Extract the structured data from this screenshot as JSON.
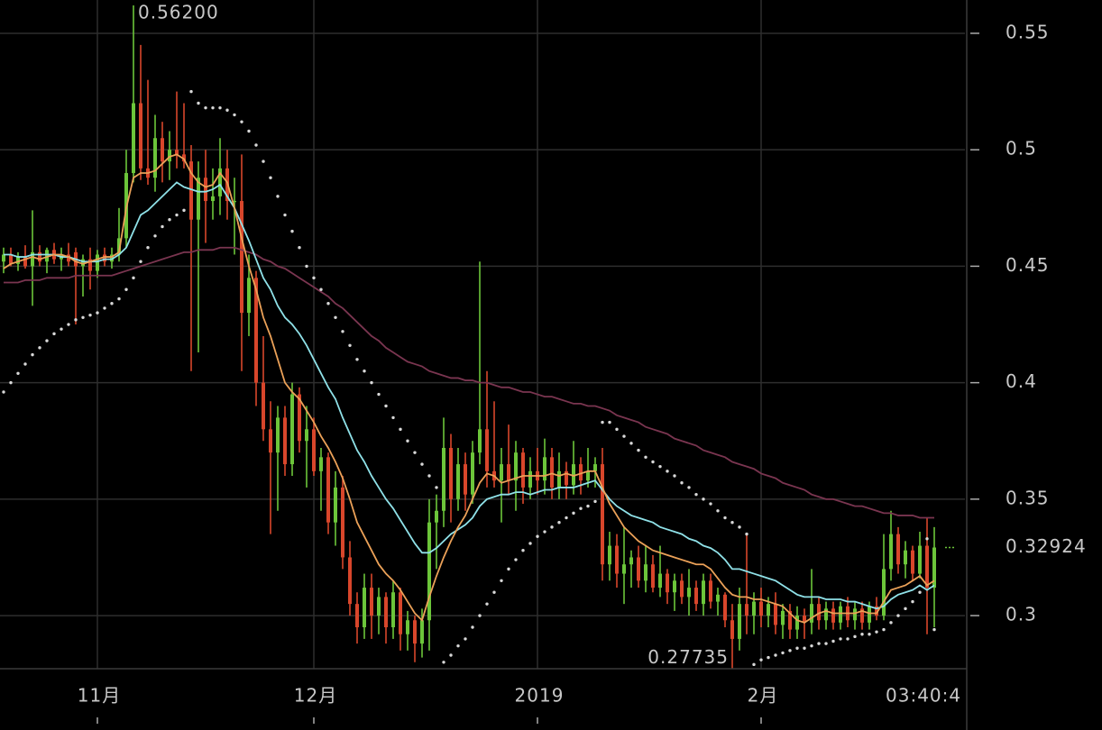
{
  "chart_data": {
    "type": "candlestick",
    "categories": [
      null,
      null,
      null,
      null,
      null,
      null,
      null,
      null,
      null,
      null,
      null,
      null,
      null,
      "11月",
      null,
      null,
      null,
      null,
      null,
      null,
      null,
      null,
      null,
      null,
      null,
      null,
      null,
      null,
      null,
      null,
      null,
      null,
      null,
      null,
      null,
      null,
      null,
      null,
      null,
      null,
      null,
      null,
      null,
      "12月",
      null,
      null,
      null,
      null,
      null,
      null,
      null,
      null,
      null,
      null,
      null,
      null,
      null,
      null,
      null,
      null,
      null,
      null,
      null,
      null,
      null,
      null,
      null,
      null,
      null,
      null,
      null,
      null,
      null,
      null,
      "2019",
      null,
      null,
      null,
      null,
      null,
      null,
      null,
      null,
      null,
      null,
      null,
      null,
      null,
      null,
      null,
      null,
      null,
      null,
      null,
      null,
      null,
      null,
      null,
      null,
      null,
      null,
      null,
      null,
      null,
      null,
      "2月",
      null,
      null,
      null,
      null,
      null,
      null,
      null,
      null,
      null,
      null,
      null,
      null,
      null,
      null,
      null,
      null,
      null,
      null,
      null,
      null,
      null,
      null,
      null,
      null
    ],
    "open": [
      0.452,
      0.455,
      0.451,
      0.454,
      0.45,
      0.456,
      0.452,
      0.457,
      0.453,
      0.455,
      0.456,
      0.45,
      0.453,
      0.448,
      0.455,
      0.452,
      0.455,
      0.462,
      0.49,
      0.52,
      0.492,
      0.488,
      0.505,
      0.495,
      0.5,
      0.498,
      0.495,
      0.47,
      0.488,
      0.478,
      0.48,
      0.492,
      0.478,
      0.478,
      0.43,
      0.445,
      0.4,
      0.38,
      0.37,
      0.385,
      0.365,
      0.395,
      0.375,
      0.38,
      0.362,
      0.368,
      0.34,
      0.355,
      0.325,
      0.305,
      0.295,
      0.312,
      0.3,
      0.308,
      0.295,
      0.31,
      0.292,
      0.298,
      0.288,
      0.298,
      0.34,
      0.345,
      0.372,
      0.35,
      0.365,
      0.352,
      0.37,
      0.38,
      0.362,
      0.358,
      0.365,
      0.358,
      0.37,
      0.355,
      0.362,
      0.358,
      0.368,
      0.355,
      0.362,
      0.356,
      0.365,
      0.358,
      0.362,
      0.365,
      0.322,
      0.33,
      0.318,
      0.322,
      0.325,
      0.315,
      0.322,
      0.312,
      0.318,
      0.31,
      0.315,
      0.308,
      0.312,
      0.305,
      0.315,
      0.306,
      0.309,
      0.298,
      0.29,
      0.305,
      0.3,
      0.306,
      0.3,
      0.305,
      0.296,
      0.302,
      0.294,
      0.3,
      0.297,
      0.305,
      0.298,
      0.303,
      0.297,
      0.304,
      0.298,
      0.303,
      0.297,
      0.304,
      0.3,
      0.32,
      0.335,
      0.322,
      0.328,
      0.318,
      0.33,
      0.312
    ],
    "high": [
      0.458,
      0.458,
      0.456,
      0.459,
      0.474,
      0.459,
      0.458,
      0.46,
      0.458,
      0.46,
      0.458,
      0.455,
      0.458,
      0.457,
      0.458,
      0.458,
      0.475,
      0.5,
      0.562,
      0.545,
      0.53,
      0.515,
      0.512,
      0.508,
      0.525,
      0.52,
      0.502,
      0.495,
      0.5,
      0.492,
      0.505,
      0.5,
      0.488,
      0.498,
      0.455,
      0.448,
      0.42,
      0.392,
      0.39,
      0.39,
      0.4,
      0.398,
      0.39,
      0.385,
      0.372,
      0.37,
      0.362,
      0.36,
      0.332,
      0.31,
      0.318,
      0.318,
      0.312,
      0.31,
      0.315,
      0.312,
      0.302,
      0.3,
      0.303,
      0.35,
      0.352,
      0.385,
      0.378,
      0.372,
      0.37,
      0.375,
      0.452,
      0.405,
      0.392,
      0.372,
      0.382,
      0.375,
      0.372,
      0.368,
      0.372,
      0.376,
      0.372,
      0.37,
      0.366,
      0.375,
      0.368,
      0.372,
      0.368,
      0.372,
      0.336,
      0.335,
      0.338,
      0.328,
      0.33,
      0.33,
      0.326,
      0.33,
      0.32,
      0.318,
      0.318,
      0.32,
      0.315,
      0.318,
      0.318,
      0.312,
      0.31,
      0.305,
      0.312,
      0.335,
      0.31,
      0.312,
      0.308,
      0.31,
      0.305,
      0.305,
      0.304,
      0.303,
      0.32,
      0.308,
      0.306,
      0.306,
      0.306,
      0.308,
      0.306,
      0.306,
      0.306,
      0.308,
      0.335,
      0.345,
      0.338,
      0.332,
      0.33,
      0.336,
      0.342,
      0.338
    ],
    "low": [
      0.447,
      0.45,
      0.448,
      0.449,
      0.433,
      0.45,
      0.447,
      0.451,
      0.448,
      0.45,
      0.425,
      0.437,
      0.44,
      0.445,
      0.45,
      0.449,
      0.452,
      0.458,
      0.486,
      0.487,
      0.485,
      0.482,
      0.486,
      0.487,
      0.492,
      0.492,
      0.405,
      0.413,
      0.46,
      0.47,
      0.472,
      0.47,
      0.455,
      0.405,
      0.42,
      0.39,
      0.375,
      0.335,
      0.345,
      0.36,
      0.36,
      0.37,
      0.355,
      0.36,
      0.345,
      0.335,
      0.33,
      0.32,
      0.3,
      0.288,
      0.29,
      0.29,
      0.292,
      0.288,
      0.29,
      0.285,
      0.285,
      0.28,
      0.282,
      0.285,
      0.32,
      0.338,
      0.34,
      0.345,
      0.345,
      0.348,
      0.365,
      0.355,
      0.355,
      0.34,
      0.352,
      0.345,
      0.348,
      0.35,
      0.352,
      0.352,
      0.35,
      0.35,
      0.35,
      0.352,
      0.352,
      0.355,
      0.355,
      0.315,
      0.315,
      0.312,
      0.305,
      0.312,
      0.312,
      0.31,
      0.31,
      0.308,
      0.305,
      0.302,
      0.305,
      0.3,
      0.302,
      0.3,
      0.303,
      0.3,
      0.295,
      0.27735,
      0.285,
      0.292,
      0.292,
      0.295,
      0.295,
      0.292,
      0.29,
      0.29,
      0.29,
      0.29,
      0.292,
      0.294,
      0.294,
      0.294,
      0.294,
      0.295,
      0.294,
      0.294,
      0.294,
      0.298,
      0.298,
      0.315,
      0.318,
      0.316,
      0.315,
      0.316,
      0.292,
      0.295
    ],
    "close": [
      0.455,
      0.451,
      0.454,
      0.45,
      0.456,
      0.452,
      0.457,
      0.453,
      0.455,
      0.452,
      0.45,
      0.453,
      0.448,
      0.455,
      0.452,
      0.455,
      0.462,
      0.49,
      0.52,
      0.492,
      0.488,
      0.505,
      0.495,
      0.5,
      0.498,
      0.495,
      0.47,
      0.488,
      0.478,
      0.48,
      0.492,
      0.478,
      0.478,
      0.43,
      0.445,
      0.4,
      0.38,
      0.37,
      0.385,
      0.365,
      0.395,
      0.375,
      0.38,
      0.362,
      0.368,
      0.34,
      0.355,
      0.325,
      0.305,
      0.295,
      0.312,
      0.3,
      0.308,
      0.295,
      0.31,
      0.292,
      0.298,
      0.288,
      0.298,
      0.34,
      0.345,
      0.372,
      0.35,
      0.365,
      0.352,
      0.37,
      0.38,
      0.362,
      0.358,
      0.365,
      0.358,
      0.37,
      0.355,
      0.362,
      0.358,
      0.368,
      0.355,
      0.362,
      0.356,
      0.365,
      0.358,
      0.362,
      0.365,
      0.322,
      0.33,
      0.318,
      0.322,
      0.325,
      0.315,
      0.322,
      0.312,
      0.318,
      0.31,
      0.315,
      0.308,
      0.312,
      0.305,
      0.315,
      0.306,
      0.309,
      0.298,
      0.29,
      0.305,
      0.3,
      0.306,
      0.3,
      0.305,
      0.296,
      0.302,
      0.294,
      0.3,
      0.297,
      0.305,
      0.298,
      0.303,
      0.297,
      0.304,
      0.298,
      0.303,
      0.297,
      0.304,
      0.3,
      0.32,
      0.335,
      0.322,
      0.328,
      0.318,
      0.33,
      0.312,
      0.32924
    ],
    "up_color": "#6cc53a",
    "down_color": "#d8462b",
    "overlays": [
      {
        "color": "#7a3550",
        "values": [
          0.443,
          0.443,
          0.443,
          0.444,
          0.444,
          0.444,
          0.445,
          0.445,
          0.445,
          0.445,
          0.446,
          0.446,
          0.446,
          0.446,
          0.446,
          0.446,
          0.447,
          0.448,
          0.449,
          0.45,
          0.451,
          0.452,
          0.453,
          0.454,
          0.455,
          0.456,
          0.456,
          0.457,
          0.457,
          0.457,
          0.458,
          0.458,
          0.458,
          0.457,
          0.456,
          0.455,
          0.453,
          0.452,
          0.45,
          0.449,
          0.447,
          0.445,
          0.443,
          0.441,
          0.439,
          0.437,
          0.434,
          0.432,
          0.429,
          0.426,
          0.423,
          0.42,
          0.418,
          0.415,
          0.413,
          0.411,
          0.409,
          0.408,
          0.407,
          0.405,
          0.404,
          0.403,
          0.402,
          0.402,
          0.401,
          0.401,
          0.4,
          0.4,
          0.399,
          0.398,
          0.398,
          0.397,
          0.396,
          0.396,
          0.395,
          0.394,
          0.394,
          0.393,
          0.392,
          0.391,
          0.391,
          0.39,
          0.39,
          0.389,
          0.388,
          0.386,
          0.385,
          0.384,
          0.383,
          0.381,
          0.38,
          0.379,
          0.378,
          0.376,
          0.375,
          0.374,
          0.373,
          0.371,
          0.37,
          0.369,
          0.368,
          0.366,
          0.365,
          0.364,
          0.363,
          0.361,
          0.36,
          0.359,
          0.357,
          0.356,
          0.355,
          0.354,
          0.352,
          0.351,
          0.35,
          0.35,
          0.349,
          0.348,
          0.347,
          0.347,
          0.346,
          0.345,
          0.344,
          0.344,
          0.343,
          0.343,
          0.343,
          0.342,
          0.342,
          0.342
        ]
      },
      {
        "color": "#8fe1e8",
        "values": [
          0.455,
          0.455,
          0.454,
          0.454,
          0.455,
          0.455,
          0.455,
          0.455,
          0.454,
          0.454,
          0.453,
          0.452,
          0.452,
          0.452,
          0.453,
          0.453,
          0.455,
          0.458,
          0.465,
          0.472,
          0.474,
          0.477,
          0.48,
          0.483,
          0.486,
          0.484,
          0.483,
          0.482,
          0.482,
          0.483,
          0.485,
          0.48,
          0.475,
          0.468,
          0.461,
          0.453,
          0.445,
          0.44,
          0.433,
          0.428,
          0.425,
          0.421,
          0.416,
          0.41,
          0.404,
          0.398,
          0.393,
          0.385,
          0.378,
          0.371,
          0.366,
          0.36,
          0.355,
          0.35,
          0.346,
          0.341,
          0.336,
          0.331,
          0.327,
          0.327,
          0.329,
          0.332,
          0.335,
          0.337,
          0.339,
          0.342,
          0.347,
          0.35,
          0.351,
          0.352,
          0.352,
          0.353,
          0.353,
          0.352,
          0.353,
          0.354,
          0.354,
          0.355,
          0.355,
          0.355,
          0.356,
          0.357,
          0.358,
          0.354,
          0.35,
          0.347,
          0.345,
          0.343,
          0.342,
          0.341,
          0.34,
          0.338,
          0.337,
          0.336,
          0.335,
          0.333,
          0.332,
          0.33,
          0.329,
          0.327,
          0.324,
          0.32,
          0.32,
          0.319,
          0.318,
          0.317,
          0.316,
          0.315,
          0.313,
          0.311,
          0.309,
          0.308,
          0.308,
          0.308,
          0.307,
          0.307,
          0.307,
          0.306,
          0.306,
          0.305,
          0.304,
          0.303,
          0.304,
          0.307,
          0.309,
          0.31,
          0.311,
          0.313,
          0.311,
          0.313
        ]
      },
      {
        "color": "#eba158",
        "values": [
          0.449,
          0.451,
          0.452,
          0.453,
          0.454,
          0.453,
          0.454,
          0.455,
          0.455,
          0.454,
          0.452,
          0.451,
          0.452,
          0.453,
          0.454,
          0.454,
          0.456,
          0.475,
          0.488,
          0.49,
          0.49,
          0.491,
          0.494,
          0.497,
          0.498,
          0.496,
          0.49,
          0.486,
          0.484,
          0.485,
          0.49,
          0.486,
          0.475,
          0.462,
          0.45,
          0.44,
          0.428,
          0.42,
          0.41,
          0.4,
          0.396,
          0.393,
          0.388,
          0.383,
          0.377,
          0.372,
          0.366,
          0.359,
          0.35,
          0.34,
          0.334,
          0.328,
          0.322,
          0.318,
          0.315,
          0.311,
          0.306,
          0.301,
          0.298,
          0.308,
          0.317,
          0.325,
          0.332,
          0.338,
          0.343,
          0.35,
          0.357,
          0.361,
          0.36,
          0.357,
          0.358,
          0.359,
          0.36,
          0.36,
          0.36,
          0.36,
          0.361,
          0.36,
          0.361,
          0.36,
          0.361,
          0.362,
          0.362,
          0.355,
          0.348,
          0.343,
          0.338,
          0.335,
          0.332,
          0.33,
          0.328,
          0.327,
          0.326,
          0.325,
          0.324,
          0.323,
          0.322,
          0.322,
          0.32,
          0.316,
          0.312,
          0.309,
          0.308,
          0.308,
          0.307,
          0.307,
          0.306,
          0.305,
          0.304,
          0.301,
          0.298,
          0.297,
          0.299,
          0.301,
          0.302,
          0.301,
          0.301,
          0.301,
          0.301,
          0.302,
          0.301,
          0.301,
          0.306,
          0.311,
          0.312,
          0.313,
          0.315,
          0.317,
          0.313,
          0.315
        ]
      }
    ],
    "sar": {
      "color": "#d8d8d8",
      "values": [
        0.396,
        0.4,
        0.404,
        0.408,
        0.412,
        0.415,
        0.418,
        0.421,
        0.423,
        0.425,
        0.427,
        0.428,
        0.429,
        0.43,
        0.432,
        0.434,
        0.436,
        0.44,
        0.445,
        0.452,
        0.458,
        0.463,
        0.467,
        0.47,
        0.472,
        0.474,
        0.525,
        0.52,
        0.518,
        0.518,
        0.518,
        0.517,
        0.515,
        0.512,
        0.508,
        0.502,
        0.495,
        0.488,
        0.48,
        0.472,
        0.465,
        0.458,
        0.45,
        0.445,
        0.44,
        0.434,
        0.428,
        0.422,
        0.416,
        0.41,
        0.405,
        0.4,
        0.395,
        0.39,
        0.385,
        0.38,
        0.375,
        0.37,
        0.365,
        0.36,
        0.355,
        0.28,
        0.283,
        0.287,
        0.29,
        0.295,
        0.3,
        0.305,
        0.31,
        0.315,
        0.32,
        0.324,
        0.328,
        0.331,
        0.334,
        0.336,
        0.338,
        0.34,
        0.342,
        0.344,
        0.346,
        0.347,
        0.349,
        0.383,
        0.383,
        0.38,
        0.377,
        0.374,
        0.371,
        0.368,
        0.366,
        0.364,
        0.362,
        0.36,
        0.357,
        0.355,
        0.352,
        0.35,
        0.348,
        0.345,
        0.342,
        0.34,
        0.338,
        0.335,
        0.279,
        0.281,
        0.282,
        0.283,
        0.284,
        0.285,
        0.286,
        0.286,
        0.287,
        0.288,
        0.288,
        0.289,
        0.29,
        0.29,
        0.291,
        0.292,
        0.292,
        0.293,
        0.294,
        0.297,
        0.3,
        0.303,
        0.306,
        0.31,
        0.333,
        0.294
      ]
    },
    "ylim": [
      0.2772,
      0.5643
    ],
    "yticks": [
      0.3,
      0.35,
      0.4,
      0.45,
      0.5,
      0.55
    ],
    "grid": true,
    "high_label": {
      "value": 0.562,
      "label": "0.56200"
    },
    "low_label": 0.27735,
    "last_label": 0.32924,
    "countdown_label": "03:40:4"
  }
}
